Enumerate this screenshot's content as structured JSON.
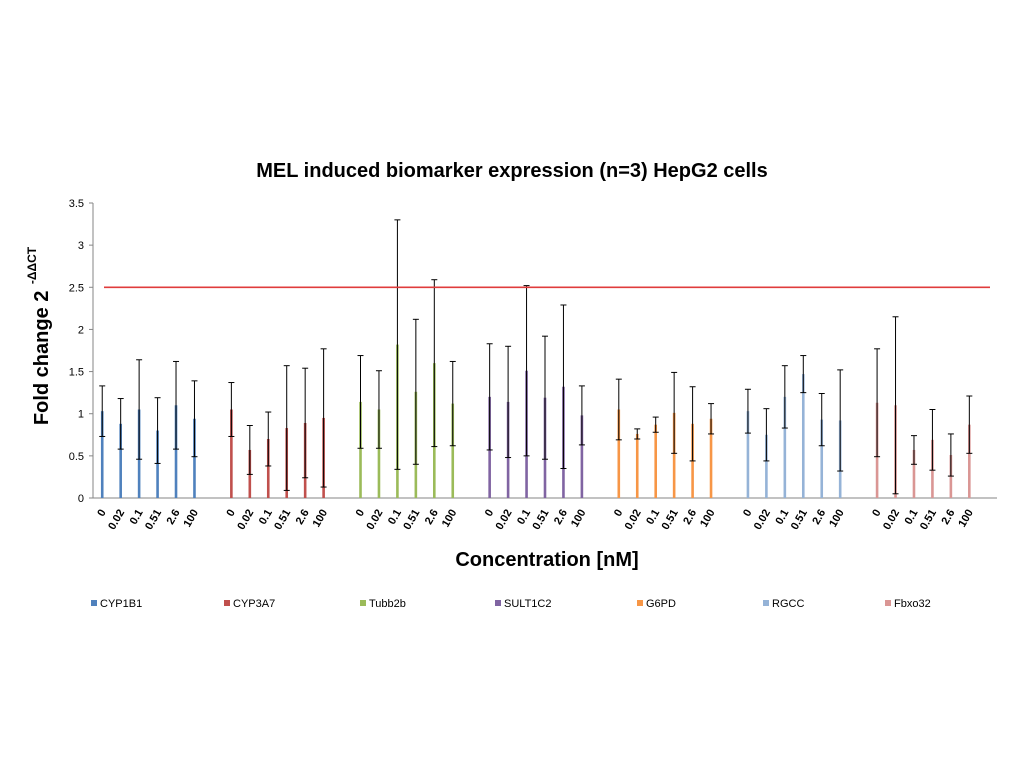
{
  "chart_data": {
    "type": "bar",
    "title": "MEL induced biomarker expression (n=3) HepG2 cells",
    "xlabel": "Concentration [nM]",
    "ylabel": "Fold change 2",
    "ylabel_superscript": "-ΔΔCT",
    "ylim": [
      0,
      3.5
    ],
    "yticks": [
      "0",
      "0.5",
      "1",
      "1.5",
      "2",
      "2.5",
      "3",
      "3.5"
    ],
    "categories": [
      "0",
      "0.02",
      "0.1",
      "0.51",
      "2.6",
      "100"
    ],
    "threshold": {
      "value": 2.5,
      "color": "#e03c3c"
    },
    "grid": false,
    "legend_position": "bottom",
    "series": [
      {
        "name": "CYP1B1",
        "color": "#4f81bd",
        "values": [
          1.03,
          0.88,
          1.05,
          0.8,
          1.1,
          0.94
        ],
        "errors": [
          0.3,
          0.3,
          0.59,
          0.39,
          0.52,
          0.45
        ]
      },
      {
        "name": "CYP3A7",
        "color": "#c0504d",
        "values": [
          1.05,
          0.57,
          0.7,
          0.83,
          0.89,
          0.95
        ],
        "errors": [
          0.32,
          0.29,
          0.32,
          0.74,
          0.65,
          0.82
        ]
      },
      {
        "name": "Tubb2b",
        "color": "#9bbb59",
        "values": [
          1.14,
          1.05,
          1.82,
          1.26,
          1.6,
          1.12
        ],
        "errors": [
          0.55,
          0.46,
          1.48,
          0.86,
          0.99,
          0.5
        ]
      },
      {
        "name": "SULT1C2",
        "color": "#8064a2",
        "values": [
          1.2,
          1.14,
          1.51,
          1.19,
          1.32,
          0.98
        ],
        "errors": [
          0.63,
          0.66,
          1.01,
          0.73,
          0.97,
          0.35
        ]
      },
      {
        "name": "G6PD",
        "color": "#f79646",
        "values": [
          1.05,
          0.76,
          0.87,
          1.01,
          0.88,
          0.94
        ],
        "errors": [
          0.36,
          0.06,
          0.09,
          0.48,
          0.44,
          0.18
        ]
      },
      {
        "name": "RGCC",
        "color": "#95b3d7",
        "values": [
          1.03,
          0.75,
          1.2,
          1.47,
          0.93,
          0.92
        ],
        "errors": [
          0.26,
          0.31,
          0.37,
          0.22,
          0.31,
          0.6
        ]
      },
      {
        "name": "Fbxo32",
        "color": "#da9694",
        "values": [
          1.13,
          1.1,
          0.57,
          0.69,
          0.51,
          0.87
        ],
        "errors": [
          0.64,
          1.05,
          0.17,
          0.36,
          0.25,
          0.34
        ]
      }
    ]
  }
}
